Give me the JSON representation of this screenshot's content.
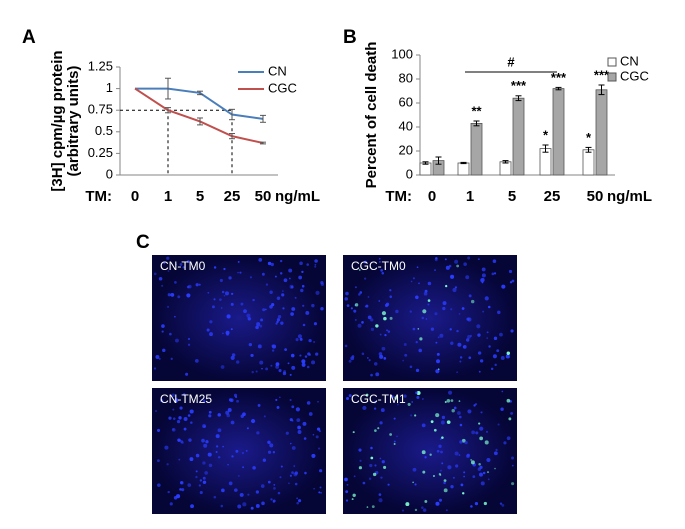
{
  "panels": [
    "A",
    "B",
    "C"
  ],
  "chart_data": [
    {
      "type": "line",
      "y_label": [
        "[3H] cpm/µg protein",
        "(arbitrary units)"
      ],
      "x_label_prefix": "TM:",
      "x_unit": "ng/mL",
      "categories": [
        "0",
        "1",
        "5",
        "25",
        "50"
      ],
      "series": [
        {
          "name": "CN",
          "color": "#4a7ebb",
          "values": [
            1,
            1,
            0.95,
            0.7,
            0.65
          ],
          "errors": [
            0,
            0.12,
            0.02,
            0.06,
            0.04
          ]
        },
        {
          "name": "CGC",
          "color": "#c0504d",
          "values": [
            1,
            0.75,
            0.62,
            0.45,
            0.37
          ],
          "errors": [
            0,
            0.03,
            0.04,
            0.03,
            0.01
          ]
        }
      ],
      "ylim": [
        0,
        1.25
      ],
      "yticks": [
        0,
        0.25,
        0.5,
        0.75,
        1,
        1.25
      ],
      "legend": "top-right"
    },
    {
      "type": "bar",
      "y_label": "Percent of cell death",
      "x_label_prefix": "TM:",
      "x_unit": "ng/mL",
      "categories": [
        "0",
        "1",
        "5",
        "25",
        "50"
      ],
      "series": [
        {
          "name": "CN",
          "color": "#ffffff",
          "values": [
            10,
            10,
            11,
            22,
            21
          ],
          "errors": [
            1,
            0.5,
            1,
            3,
            2
          ],
          "significance": [
            null,
            null,
            null,
            "*",
            "*"
          ]
        },
        {
          "name": "CGC",
          "color": "#a6a6a6",
          "values": [
            12,
            43,
            64,
            72,
            71
          ],
          "errors": [
            3,
            2,
            2,
            1,
            4
          ],
          "significance": [
            null,
            "**",
            "***",
            "***",
            "***"
          ]
        }
      ],
      "annotation": "#",
      "ylim": [
        0,
        100
      ],
      "yticks": [
        0,
        20,
        40,
        60,
        80,
        100
      ],
      "legend": "top-right"
    }
  ],
  "images": [
    "CN-TM0",
    "CGC-TM0",
    "CN-TM25",
    "CGC-TM1"
  ]
}
